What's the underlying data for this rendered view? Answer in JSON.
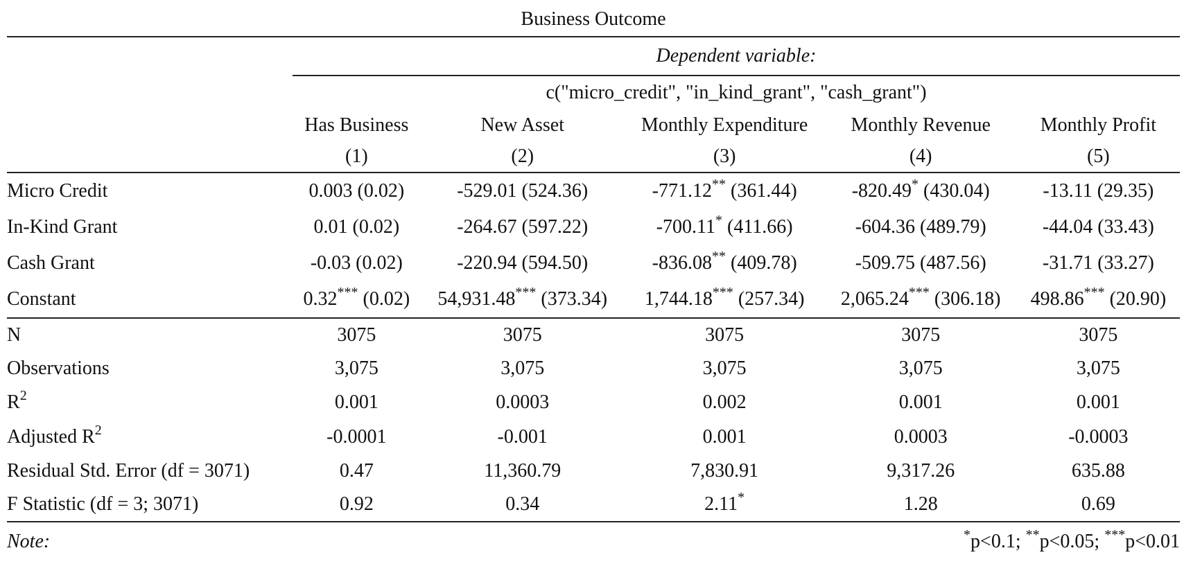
{
  "title": "Business Outcome",
  "dependent_variable_label": "Dependent variable:",
  "dependent_variable_value": "c(\"micro_credit\", \"in_kind_grant\", \"cash_grant\")",
  "columns": [
    {
      "name": "Has Business",
      "number": "(1)"
    },
    {
      "name": "New Asset",
      "number": "(2)"
    },
    {
      "name": "Monthly Expenditure",
      "number": "(3)"
    },
    {
      "name": "Monthly Revenue",
      "number": "(4)"
    },
    {
      "name": "Monthly Profit",
      "number": "(5)"
    }
  ],
  "coefficients": [
    {
      "label": "Micro Credit",
      "cells": [
        {
          "est": "0.003",
          "stars": "",
          "se": " (0.02)"
        },
        {
          "est": "-529.01",
          "stars": "",
          "se": " (524.36)"
        },
        {
          "est": "-771.12",
          "stars": "**",
          "se": " (361.44)"
        },
        {
          "est": "-820.49",
          "stars": "*",
          "se": " (430.04)"
        },
        {
          "est": "-13.11",
          "stars": "",
          "se": " (29.35)"
        }
      ]
    },
    {
      "label": "In-Kind Grant",
      "cells": [
        {
          "est": "0.01",
          "stars": "",
          "se": " (0.02)"
        },
        {
          "est": "-264.67",
          "stars": "",
          "se": " (597.22)"
        },
        {
          "est": "-700.11",
          "stars": "*",
          "se": " (411.66)"
        },
        {
          "est": "-604.36",
          "stars": "",
          "se": " (489.79)"
        },
        {
          "est": "-44.04",
          "stars": "",
          "se": " (33.43)"
        }
      ]
    },
    {
      "label": "Cash Grant",
      "cells": [
        {
          "est": "-0.03",
          "stars": "",
          "se": " (0.02)"
        },
        {
          "est": "-220.94",
          "stars": "",
          "se": " (594.50)"
        },
        {
          "est": "-836.08",
          "stars": "**",
          "se": " (409.78)"
        },
        {
          "est": "-509.75",
          "stars": "",
          "se": " (487.56)"
        },
        {
          "est": "-31.71",
          "stars": "",
          "se": " (33.27)"
        }
      ]
    },
    {
      "label": "Constant",
      "cells": [
        {
          "est": "0.32",
          "stars": "***",
          "se": " (0.02)"
        },
        {
          "est": "54,931.48",
          "stars": "***",
          "se": " (373.34)"
        },
        {
          "est": "1,744.18",
          "stars": "***",
          "se": " (257.34)"
        },
        {
          "est": "2,065.24",
          "stars": "***",
          "se": " (306.18)"
        },
        {
          "est": "498.86",
          "stars": "***",
          "se": " (20.90)"
        }
      ]
    }
  ],
  "statistics": [
    {
      "label": "N",
      "sup": "",
      "label_after": "",
      "values": [
        {
          "v": "3075",
          "s": ""
        },
        {
          "v": "3075",
          "s": ""
        },
        {
          "v": "3075",
          "s": ""
        },
        {
          "v": "3075",
          "s": ""
        },
        {
          "v": "3075",
          "s": ""
        }
      ]
    },
    {
      "label": "Observations",
      "sup": "",
      "label_after": "",
      "values": [
        {
          "v": "3,075",
          "s": ""
        },
        {
          "v": "3,075",
          "s": ""
        },
        {
          "v": "3,075",
          "s": ""
        },
        {
          "v": "3,075",
          "s": ""
        },
        {
          "v": "3,075",
          "s": ""
        }
      ]
    },
    {
      "label": "R",
      "sup": "2",
      "label_after": "",
      "values": [
        {
          "v": "0.001",
          "s": ""
        },
        {
          "v": "0.0003",
          "s": ""
        },
        {
          "v": "0.002",
          "s": ""
        },
        {
          "v": "0.001",
          "s": ""
        },
        {
          "v": "0.001",
          "s": ""
        }
      ]
    },
    {
      "label": "Adjusted R",
      "sup": "2",
      "label_after": "",
      "values": [
        {
          "v": "-0.0001",
          "s": ""
        },
        {
          "v": "-0.001",
          "s": ""
        },
        {
          "v": "0.001",
          "s": ""
        },
        {
          "v": "0.0003",
          "s": ""
        },
        {
          "v": "-0.0003",
          "s": ""
        }
      ]
    },
    {
      "label": "Residual Std. Error (df = 3071)",
      "sup": "",
      "label_after": "",
      "values": [
        {
          "v": "0.47",
          "s": ""
        },
        {
          "v": "11,360.79",
          "s": ""
        },
        {
          "v": "7,830.91",
          "s": ""
        },
        {
          "v": "9,317.26",
          "s": ""
        },
        {
          "v": "635.88",
          "s": ""
        }
      ]
    },
    {
      "label": "F Statistic (df = 3; 3071)",
      "sup": "",
      "label_after": "",
      "values": [
        {
          "v": "0.92",
          "s": ""
        },
        {
          "v": "0.34",
          "s": ""
        },
        {
          "v": "2.11",
          "s": "*"
        },
        {
          "v": "1.28",
          "s": ""
        },
        {
          "v": "0.69",
          "s": ""
        }
      ]
    }
  ],
  "note": {
    "label": "Note:",
    "sig": [
      {
        "stars": "*",
        "text": "p<0.1; "
      },
      {
        "stars": "**",
        "text": "p<0.05; "
      },
      {
        "stars": "***",
        "text": "p<0.01"
      }
    ]
  }
}
